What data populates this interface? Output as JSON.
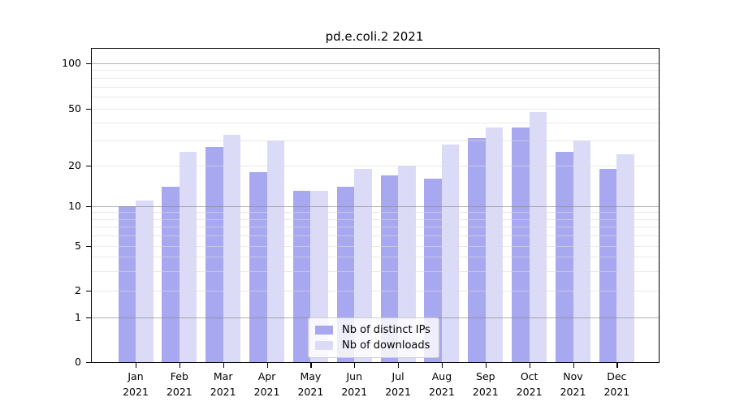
{
  "chart_data": {
    "type": "bar",
    "title": "pd.e.coli.2 2021",
    "categories": [
      "Jan",
      "Feb",
      "Mar",
      "Apr",
      "May",
      "Jun",
      "Jul",
      "Aug",
      "Sep",
      "Oct",
      "Nov",
      "Dec"
    ],
    "category_year": "2021",
    "series": [
      {
        "name": "Nb of distinct IPs",
        "color": "#a8a8f0",
        "values": [
          10,
          14,
          27,
          18,
          13,
          14,
          17,
          16,
          31,
          37,
          25,
          19
        ]
      },
      {
        "name": "Nb of downloads",
        "color": "#dbdbf8",
        "values": [
          11,
          25,
          33,
          30,
          13,
          19,
          20,
          28,
          37,
          47,
          30,
          24
        ]
      }
    ],
    "xlabel": "",
    "ylabel": "",
    "yscale": "symlog",
    "ylim": [
      0,
      128
    ],
    "yticks": [
      {
        "value": 0,
        "label": "0"
      },
      {
        "value": 1,
        "label": "1"
      },
      {
        "value": 2,
        "label": "2"
      },
      {
        "value": 5,
        "label": "5"
      },
      {
        "value": 10,
        "label": "10"
      },
      {
        "value": 20,
        "label": "20"
      },
      {
        "value": 50,
        "label": "50"
      },
      {
        "value": 100,
        "label": "100"
      }
    ],
    "grid": {
      "major_values": [
        1,
        10,
        100
      ],
      "minor_values": [
        2,
        3,
        4,
        5,
        6,
        7,
        8,
        9,
        20,
        30,
        40,
        50,
        60,
        70,
        80,
        90
      ],
      "major_color": "rgba(134,134,134,0.65)",
      "minor_color": "rgba(218,218,218,0.6)",
      "drawn_over_bars": true
    },
    "legend": {
      "position": "lower center"
    },
    "colors": {
      "axis": "#000000",
      "text": "#111111",
      "background": "#ffffff"
    }
  }
}
